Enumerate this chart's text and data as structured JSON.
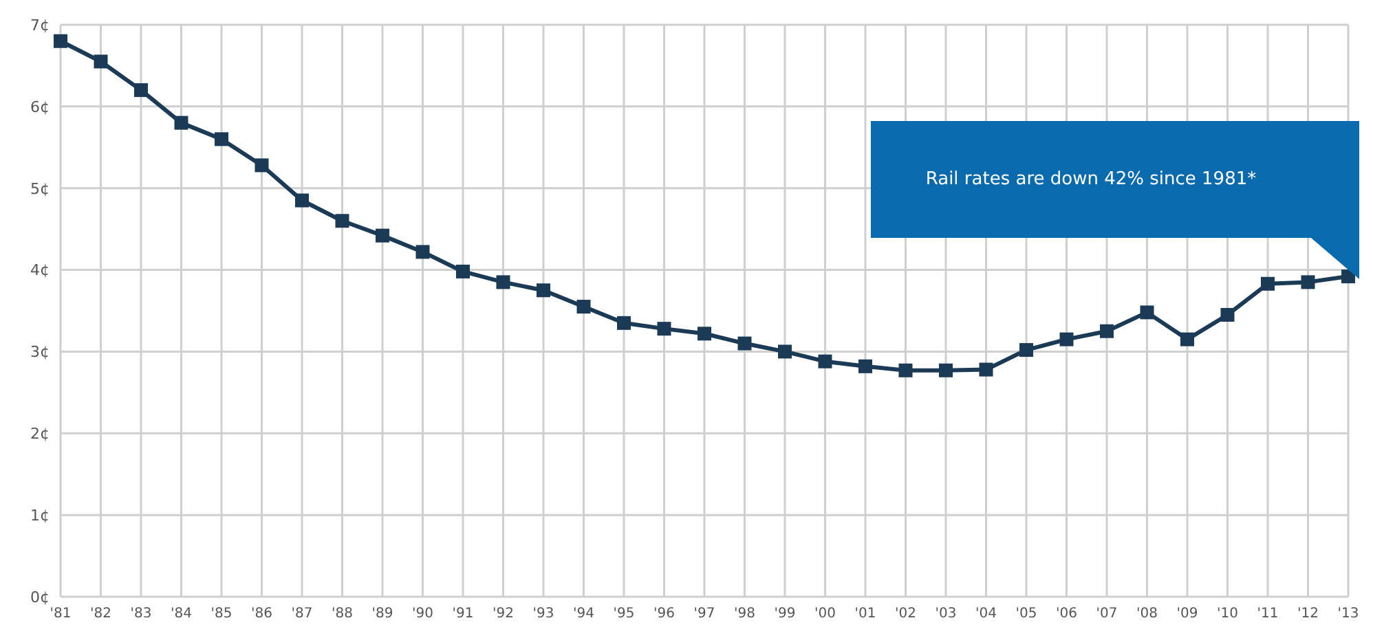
{
  "chart_data": {
    "type": "line",
    "categories": [
      "'81",
      "'82",
      "'83",
      "'84",
      "'85",
      "'86",
      "'87",
      "'88",
      "'89",
      "'90",
      "'91",
      "'92",
      "'93",
      "'94",
      "'95",
      "'96",
      "'97",
      "'98",
      "'99",
      "'00",
      "'01",
      "'02",
      "'03",
      "'04",
      "'05",
      "'06",
      "'07",
      "'08",
      "'09",
      "'10",
      "'11",
      "'12",
      "'13"
    ],
    "series": [
      {
        "color": "#1b3a56",
        "values": [
          6.8,
          6.55,
          6.2,
          5.8,
          5.6,
          5.28,
          4.85,
          4.6,
          4.42,
          4.22,
          3.98,
          3.85,
          3.75,
          3.55,
          3.35,
          3.28,
          3.22,
          3.1,
          3.0,
          2.88,
          2.82,
          2.77,
          2.77,
          2.78,
          3.02,
          3.15,
          3.25,
          3.48,
          3.15,
          3.45,
          3.83,
          3.85,
          3.92
        ]
      }
    ],
    "ylim": [
      0,
      7
    ],
    "yticks": [
      {
        "value": 0,
        "label": "0¢"
      },
      {
        "value": 1,
        "label": "1¢"
      },
      {
        "value": 2,
        "label": "2¢"
      },
      {
        "value": 3,
        "label": "3¢"
      },
      {
        "value": 4,
        "label": "4¢"
      },
      {
        "value": 5,
        "label": "5¢"
      },
      {
        "value": 6,
        "label": "6¢"
      },
      {
        "value": 7,
        "label": "7¢"
      }
    ],
    "grid": true,
    "marker": "square",
    "line_style": "solid",
    "legend": false,
    "annotations": [
      "Rail rates are down 42% since 1981*"
    ]
  }
}
